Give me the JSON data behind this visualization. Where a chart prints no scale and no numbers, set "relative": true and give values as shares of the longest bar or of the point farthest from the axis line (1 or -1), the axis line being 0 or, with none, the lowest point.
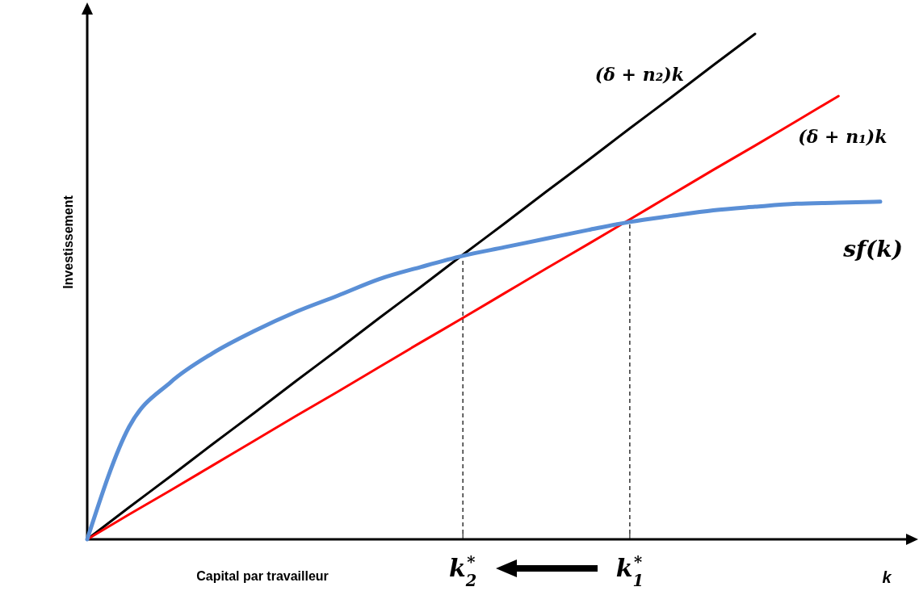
{
  "chart_data": {
    "type": "line",
    "relative": true,
    "xlabel": "Capital par travailleur",
    "ylabel": "Investissement",
    "marker": "none",
    "line_style": "solid",
    "categories": [
      null,
      null,
      null,
      null,
      null,
      null,
      null,
      null,
      null,
      "k$_{2}$$^{*}$",
      null,
      null,
      null,
      "k$_{1}$$^{*}$",
      null,
      null,
      null,
      null,
      null,
      null
    ],
    "annotations": [
      "k"
    ],
    "series": [
      {
        "name": "(δ + n₂)k",
        "color": "#000000",
        "values": [
          0,
          0.063,
          0.125,
          0.188,
          0.25,
          0.313,
          0.375,
          0.438,
          0.5,
          0.563,
          0.625,
          0.688,
          0.75,
          0.813,
          0.875,
          0.938,
          1,
          null,
          null,
          null
        ]
      },
      {
        "name": "(δ + n₁)k",
        "color": "#ff0000",
        "values": [
          0,
          0.049,
          0.097,
          0.146,
          0.195,
          0.244,
          0.292,
          0.341,
          0.39,
          0.438,
          0.487,
          0.536,
          0.584,
          0.633,
          0.682,
          0.731,
          0.779,
          0.828,
          0.877,
          null
        ]
      },
      {
        "name": "sf(k)",
        "color": "#5a8fd6",
        "values": [
          0,
          0.222,
          0.311,
          0.368,
          0.412,
          0.45,
          0.482,
          0.515,
          0.539,
          0.561,
          0.578,
          0.595,
          0.612,
          0.628,
          0.64,
          0.651,
          0.658,
          0.664,
          0.666,
          0.668
        ]
      }
    ]
  }
}
